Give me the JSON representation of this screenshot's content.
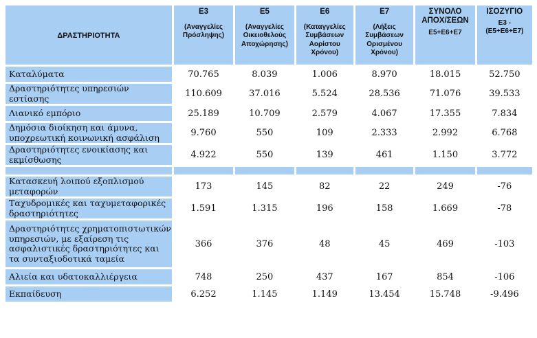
{
  "headers": {
    "activity": "ΔΡΑΣΤΗΡΙΟΤΗΤΑ",
    "e3_code": "Ε3",
    "e3_desc": "(Αναγγελίες Πρόσληψης)",
    "e5_code": "Ε5",
    "e5_desc": "(Αναγγελίες Οικειοθελούς Αποχώρησης)",
    "e6_code": "Ε6",
    "e6_desc": "(Καταγγελίες Συμβάσεων Αορίστου Χρόνου)",
    "e7_code": "Ε7",
    "e7_desc": "(Λήξεις Συμβάσεων Ορισμένου Χρόνου)",
    "total_code": "ΣΥΝΟΛΟ ΑΠΟΧ/ΣΕΩΝ",
    "total_desc": "Ε5+Ε6+Ε7",
    "balance_code": "ΙΣΟΖΥΓΙΟ",
    "balance_desc1": "Ε3 -",
    "balance_desc2": "(Ε5+Ε6+Ε7)"
  },
  "rows": [
    {
      "activity": "Καταλύματα",
      "e3": "70.765",
      "e5": "8.039",
      "e6": "1.006",
      "e7": "8.970",
      "total": "18.015",
      "balance": "52.750"
    },
    {
      "activity": "Δραστηριότητες υπηρεσιών εστίασης",
      "e3": "110.609",
      "e5": "37.016",
      "e6": "5.524",
      "e7": "28.536",
      "total": "71.076",
      "balance": "39.533"
    },
    {
      "activity": "Λιανικό εμπόριο",
      "e3": "25.189",
      "e5": "10.709",
      "e6": "2.579",
      "e7": "4.067",
      "total": "17.355",
      "balance": "7.834"
    },
    {
      "activity": "Δημόσια διοίκηση και άμυνα, υποχρεωτική κοινωνική ασφάλιση",
      "e3": "9.760",
      "e5": "550",
      "e6": "109",
      "e7": "2.333",
      "total": "2.992",
      "balance": "6.768"
    },
    {
      "activity": "Δραστηριότητες ενοικίασης και εκμίσθωσης",
      "e3": "4.922",
      "e5": "550",
      "e6": "139",
      "e7": "461",
      "total": "1.150",
      "balance": "3.772"
    }
  ],
  "rows2": [
    {
      "activity": "Κατασκευή λοιπού εξοπλισμού μεταφορών",
      "e3": "173",
      "e5": "145",
      "e6": "82",
      "e7": "22",
      "total": "249",
      "balance": "-76"
    },
    {
      "activity": "Ταχυδρομικές και ταχυμεταφορικές δραστηριότητες",
      "e3": "1.591",
      "e5": "1.315",
      "e6": "196",
      "e7": "158",
      "total": "1.669",
      "balance": "-78"
    },
    {
      "activity": "Δραστηριότητες χρηματοπιστωτικών υπηρεσιών, με εξαίρεση τις ασφαλιστικές δραστηριότητες και τα συνταξιοδοτικά ταμεία",
      "e3": "366",
      "e5": "376",
      "e6": "48",
      "e7": "45",
      "total": "469",
      "balance": "-103"
    },
    {
      "activity": "Αλιεία και υδατοκαλλιέργεια",
      "e3": "748",
      "e5": "250",
      "e6": "437",
      "e7": "167",
      "total": "854",
      "balance": "-106"
    },
    {
      "activity": "Εκπαίδευση",
      "e3": "6.252",
      "e5": "1.145",
      "e6": "1.149",
      "e7": "13.454",
      "total": "15.748",
      "balance": "-9.496"
    }
  ]
}
